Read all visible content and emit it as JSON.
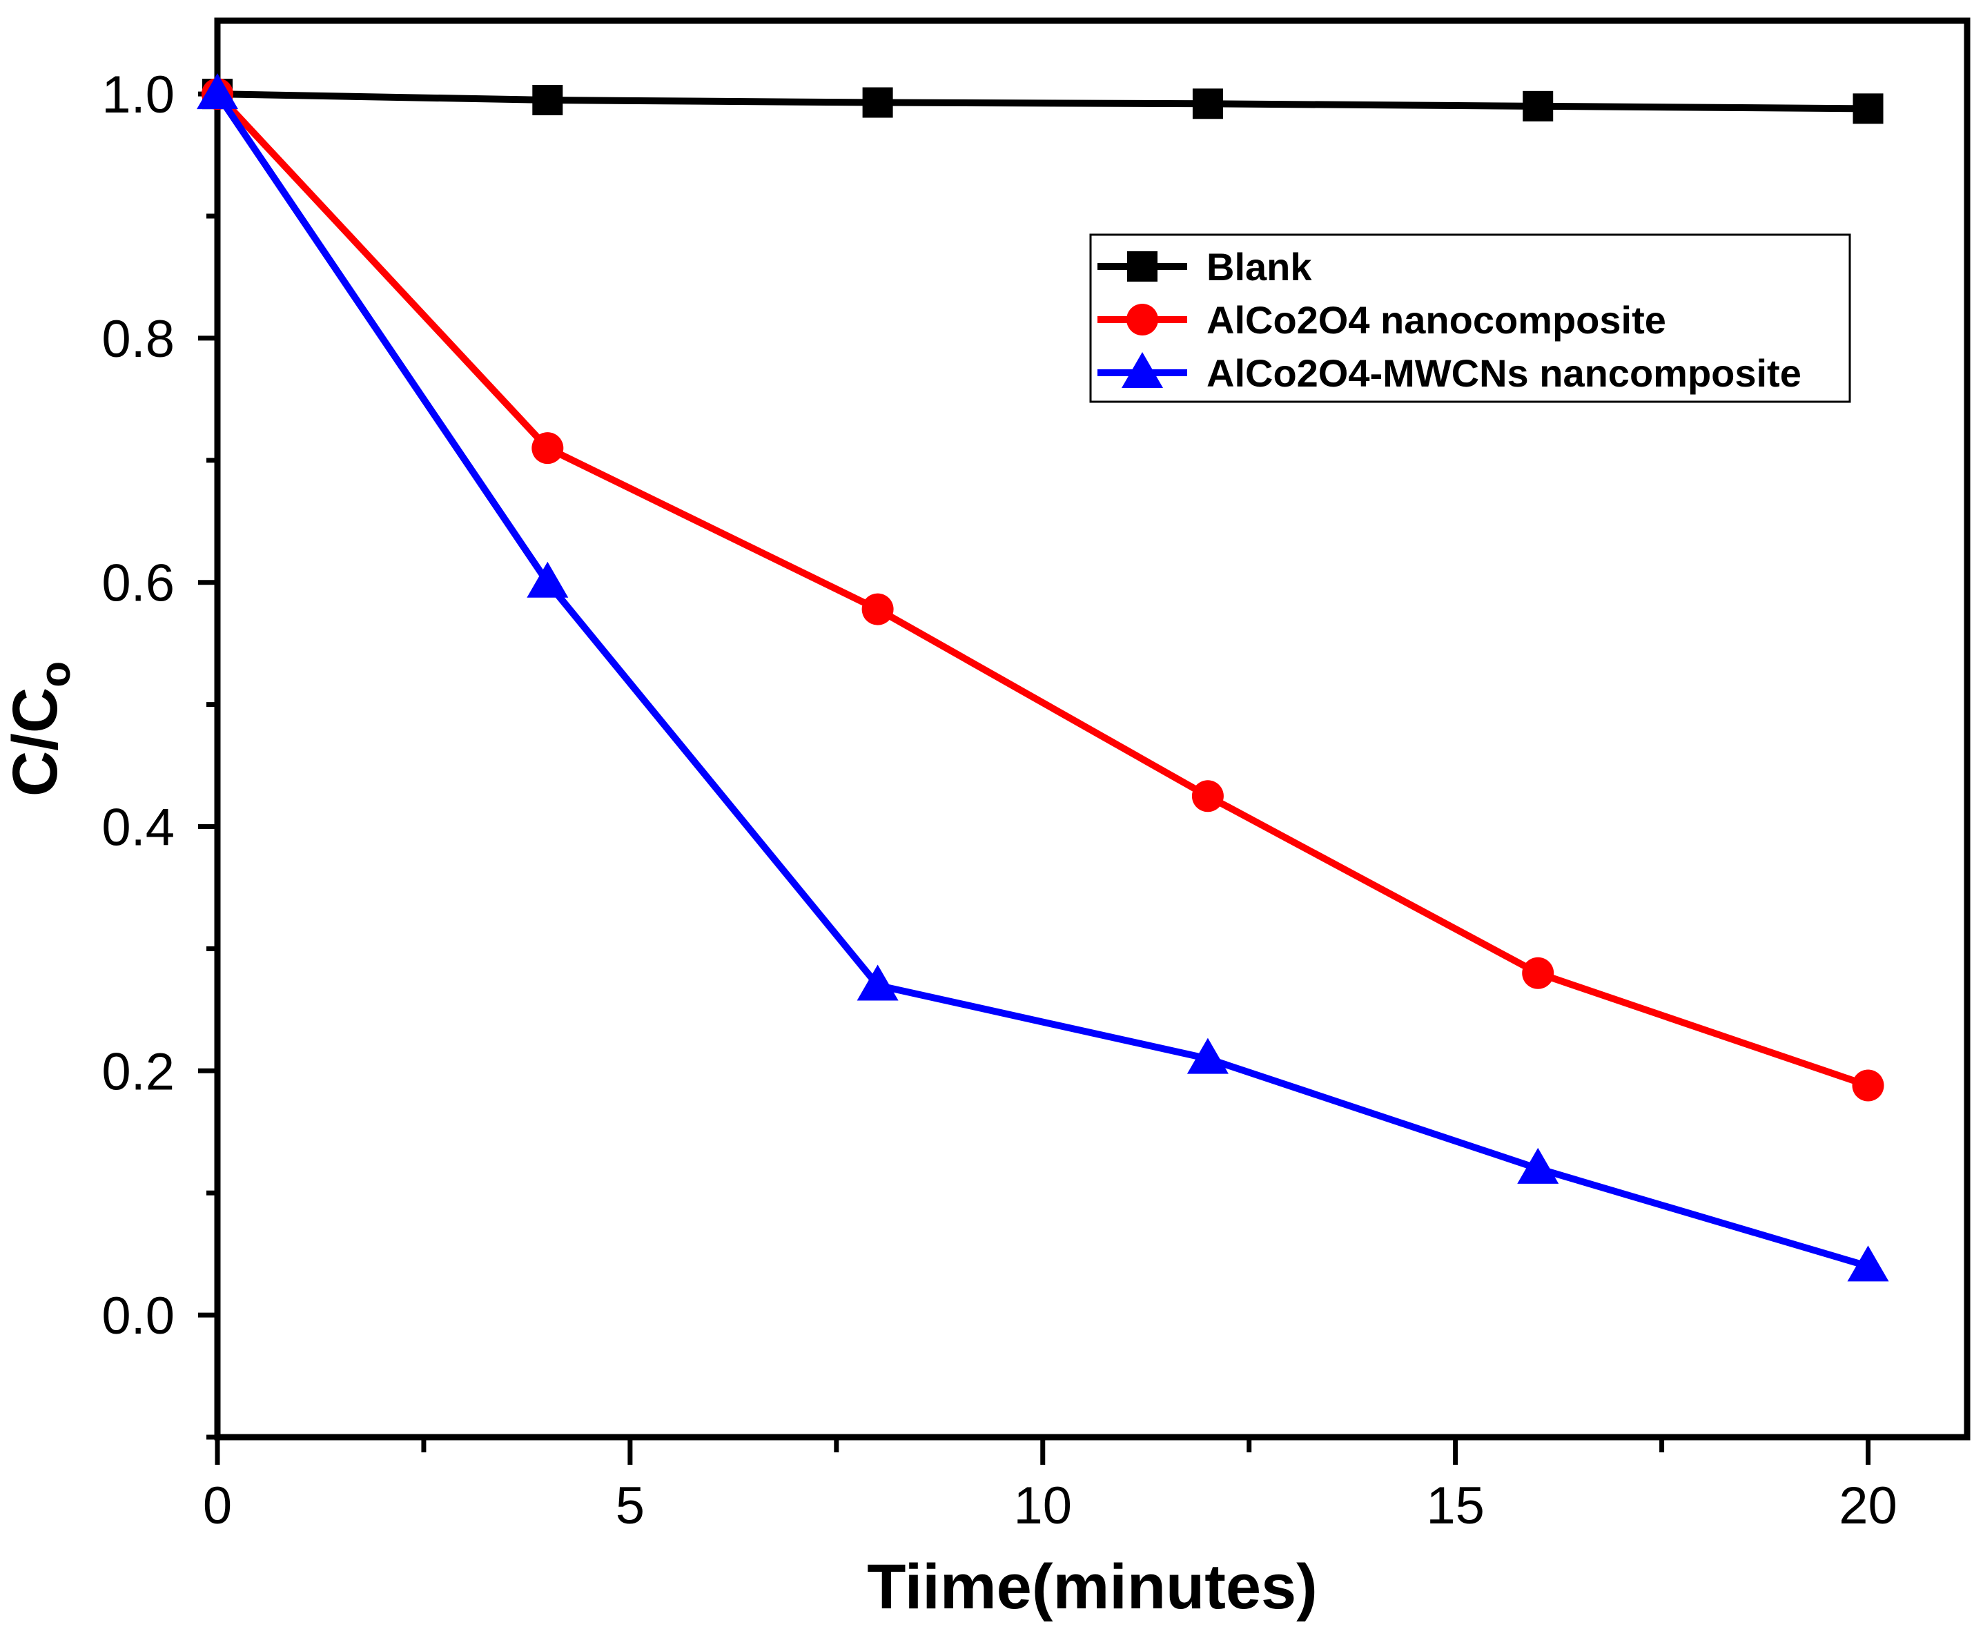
{
  "chart_data": {
    "type": "line",
    "title": "",
    "xlabel": "Tiime(minutes)",
    "ylabel_main": "C/C",
    "ylabel_sub": "o",
    "xlim": [
      0,
      21.2
    ],
    "ylim": [
      -0.1,
      1.06
    ],
    "x_major_ticks": [
      0,
      5,
      10,
      15,
      20
    ],
    "x_minor_ticks": [
      2.5,
      7.5,
      12.5,
      17.5
    ],
    "x_tick_labels": [
      "0",
      "5",
      "10",
      "15",
      "20"
    ],
    "y_major_ticks": [
      0.0,
      0.2,
      0.4,
      0.6,
      0.8,
      1.0
    ],
    "y_minor_ticks": [
      -0.1,
      0.1,
      0.3,
      0.5,
      0.7,
      0.9
    ],
    "y_tick_labels": [
      "0.0",
      "0.2",
      "0.4",
      "0.6",
      "0.8",
      "1.0"
    ],
    "grid": false,
    "legend_position": "upper-right",
    "series": [
      {
        "name": "Blank",
        "color": "#000000",
        "marker": "square",
        "x": [
          0,
          4,
          8,
          12,
          16,
          20
        ],
        "y": [
          1.0,
          0.995,
          0.993,
          0.992,
          0.99,
          0.988
        ]
      },
      {
        "name": "AlCo2O4 nanocomposite",
        "color": "#ff0000",
        "marker": "circle",
        "x": [
          0,
          4,
          8,
          12,
          16,
          20
        ],
        "y": [
          1.0,
          0.71,
          0.578,
          0.425,
          0.28,
          0.188
        ]
      },
      {
        "name": "AlCo2O4-MWCNs nancomposite",
        "color": "#0000ff",
        "marker": "triangle",
        "x": [
          0,
          4,
          8,
          12,
          16,
          20
        ],
        "y": [
          1.0,
          0.6,
          0.27,
          0.21,
          0.12,
          0.04
        ]
      }
    ]
  }
}
